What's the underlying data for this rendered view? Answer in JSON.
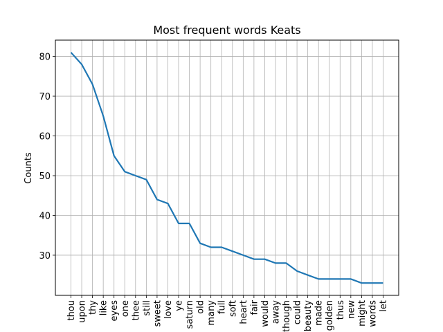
{
  "chart_data": {
    "type": "line",
    "title": "Most frequent words Keats",
    "xlabel": "",
    "ylabel": "Counts",
    "categories": [
      "thou",
      "upon",
      "thy",
      "like",
      "eyes",
      "one",
      "thee",
      "still",
      "sweet",
      "love",
      "ye",
      "saturn",
      "old",
      "many",
      "full",
      "soft",
      "heart",
      "fair",
      "would",
      "away",
      "though",
      "could",
      "beauty",
      "made",
      "golden",
      "thus",
      "new",
      "might",
      "words",
      "let"
    ],
    "values": [
      81,
      78,
      73,
      65,
      55,
      51,
      50,
      49,
      44,
      43,
      38,
      38,
      33,
      32,
      32,
      31,
      30,
      29,
      29,
      28,
      28,
      26,
      25,
      24,
      24,
      24,
      24,
      23,
      23,
      23
    ],
    "yticks": [
      30,
      40,
      50,
      60,
      70,
      80
    ],
    "ylim": [
      19.9,
      84.1
    ],
    "grid": true,
    "line_color": "#1f77b4"
  }
}
